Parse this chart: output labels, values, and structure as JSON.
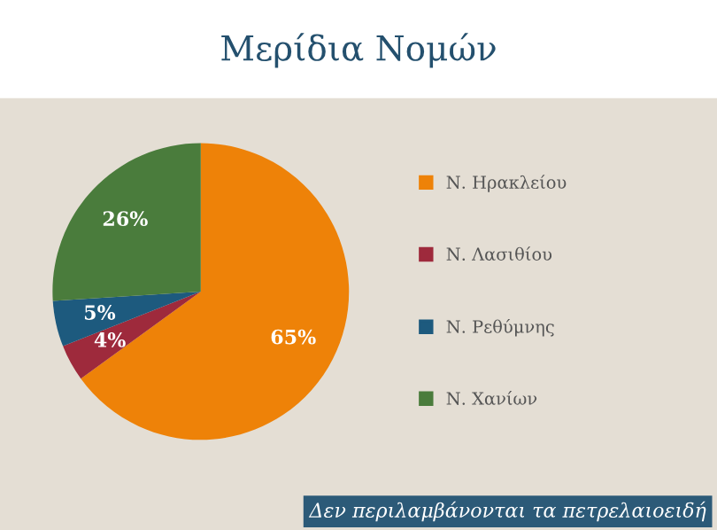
{
  "chart_data": {
    "type": "pie",
    "title": "Μερίδια Νομών",
    "categories": [
      "Ν. Ηρακλείου",
      "Ν. Λασιθίου",
      "Ν. Ρεθύμνης",
      "Ν. Χανίων"
    ],
    "values": [
      65,
      4,
      5,
      26
    ],
    "colors": [
      "#ee8208",
      "#9e2a3c",
      "#1d5a7e",
      "#4a7c3c"
    ],
    "value_labels": [
      "65%",
      "4%",
      "5%",
      "26%"
    ],
    "legend": "right",
    "annotations": [
      "Δεν περιλαμβάνονται τα πετρελαιοειδή"
    ]
  }
}
